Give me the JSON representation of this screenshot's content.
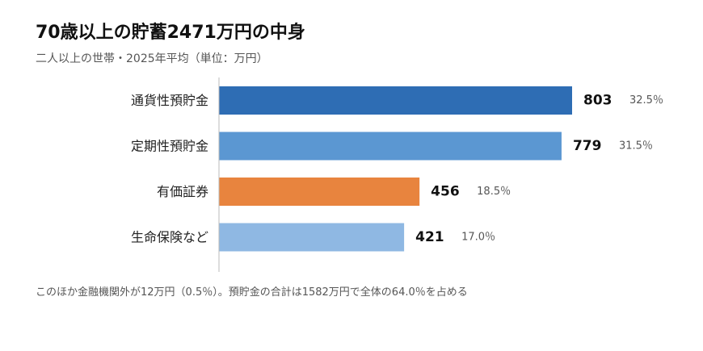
{
  "title": "70歳以上の貯蓄2471万円の中身",
  "subtitle": "二人以上の世帯・2025年平均（単位：万円）",
  "note": "このほか金融機関外が12万円（0.5％）。預貯金の合計は1582万円で全体の64.0％を占める",
  "chart_data": {
    "type": "bar",
    "orientation": "horizontal",
    "categories": [
      "通貨性預貯金",
      "定期性預貯金",
      "有価証券",
      "生命保険など"
    ],
    "values": [
      803,
      779,
      456,
      421
    ],
    "value_labels": [
      "803",
      "779",
      "456",
      "421"
    ],
    "percent_labels": [
      "32.5％",
      "31.5％",
      "18.5％",
      "17.0％"
    ],
    "colors": [
      "#2e6db4",
      "#5b97d2",
      "#e8843e",
      "#8fb8e3"
    ],
    "xlim": [
      0,
      850
    ]
  }
}
